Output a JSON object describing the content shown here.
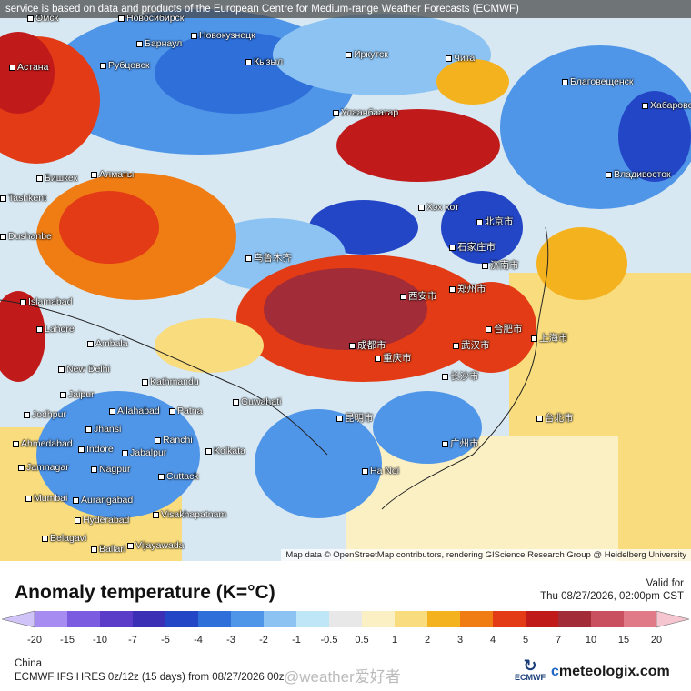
{
  "notice": "service is based on data and products of the European Centre for Medium-range Weather Forecasts (ECMWF)",
  "map_credit": "Map data © OpenStreetMap contributors, rendering GIScience Research Group @ Heidelberg University",
  "legend": {
    "title": "Anomaly temperature (K=°C)",
    "valid_label": "Valid for",
    "valid_time": "Thu 08/27/2026, 02:00pm CST",
    "ticks": [
      "-20",
      "-15",
      "-10",
      "-7",
      "-5",
      "-4",
      "-3",
      "-2",
      "-1",
      "-0.5",
      "0.5",
      "1",
      "2",
      "3",
      "4",
      "5",
      "7",
      "10",
      "15",
      "20"
    ],
    "colors": {
      "lt_-20": "#cfc3f7",
      "-20_-15": "#a68cf0",
      "-15_-10": "#7b5be0",
      "-10_-7": "#5a3cc8",
      "-7_-5": "#3a2fb5",
      "-5_-4": "#2346c7",
      "-4_-3": "#2e6fd9",
      "-3_-2": "#4f95e8",
      "-2_-1": "#8cc3f2",
      "-1_-0.5": "#bfe6f7",
      "-0.5_0.5": "#e8e8e8",
      "0.5_1": "#fbf0c4",
      "1_2": "#f8dc7d",
      "2_3": "#f5b21f",
      "3_4": "#f07d13",
      "4_5": "#e23b15",
      "5_7": "#c11a1a",
      "7_10": "#a22c37",
      "10_15": "#c9505e",
      "15_20": "#e07a86",
      "gt_20": "#f5c6d0"
    }
  },
  "region": "China",
  "model": "ECMWF IFS HRES 0z/12z (15 days) from 08/27/2026 00z",
  "watermark": "@weather爱好者",
  "ecmwf_label": "ECMWF",
  "brand": {
    "icon": "c",
    "name": "meteologix.com"
  },
  "cities": [
    {
      "name": "Омск"
    },
    {
      "name": "Новосибирск"
    },
    {
      "name": "Барнаул"
    },
    {
      "name": "Новокузнецк"
    },
    {
      "name": "Рубцовск"
    },
    {
      "name": "Кызыл"
    },
    {
      "name": "Иркутск"
    },
    {
      "name": "Чита"
    },
    {
      "name": "Астана"
    },
    {
      "name": "Улаанбаатар"
    },
    {
      "name": "Благовещенск"
    },
    {
      "name": "Хабаровск"
    },
    {
      "name": "Бишкек"
    },
    {
      "name": "Алматы"
    },
    {
      "name": "Владивосток"
    },
    {
      "name": "北京市"
    },
    {
      "name": "石家庄市"
    },
    {
      "name": "济南市"
    },
    {
      "name": "西安市"
    },
    {
      "name": "郑州市"
    },
    {
      "name": "合肥市"
    },
    {
      "name": "上海市"
    },
    {
      "name": "武汉市"
    },
    {
      "name": "成都市"
    },
    {
      "name": "重庆市"
    },
    {
      "name": "长沙市"
    },
    {
      "name": "昆明市"
    },
    {
      "name": "广州市"
    },
    {
      "name": "台北市"
    },
    {
      "name": "乌鲁木齐"
    },
    {
      "name": "Islamabad"
    },
    {
      "name": "Lahore"
    },
    {
      "name": "New Delhi"
    },
    {
      "name": "Kathmandu"
    },
    {
      "name": "Guwahati"
    },
    {
      "name": "Patna"
    },
    {
      "name": "Jaipur"
    },
    {
      "name": "Jodhpur"
    },
    {
      "name": "Ahmedabad"
    },
    {
      "name": "Indore"
    },
    {
      "name": "Nagpur"
    },
    {
      "name": "Mumbai"
    },
    {
      "name": "Hyderabad"
    },
    {
      "name": "Kolkata"
    },
    {
      "name": "Cuttack"
    },
    {
      "name": "Visakhapatnam"
    },
    {
      "name": "Vijayawada"
    },
    {
      "name": "Ha Noi"
    },
    {
      "name": "Allahabad"
    },
    {
      "name": "Jhansi"
    },
    {
      "name": "Jabalpur"
    },
    {
      "name": "Ranchi"
    },
    {
      "name": "Aurangabad"
    },
    {
      "name": "Belagavi"
    },
    {
      "name": "Ballari"
    },
    {
      "name": "Jamnagar"
    },
    {
      "name": "Ambala"
    },
    {
      "name": "Dushanbe"
    },
    {
      "name": "Tashkent"
    },
    {
      "name": "Хэх хот"
    }
  ]
}
